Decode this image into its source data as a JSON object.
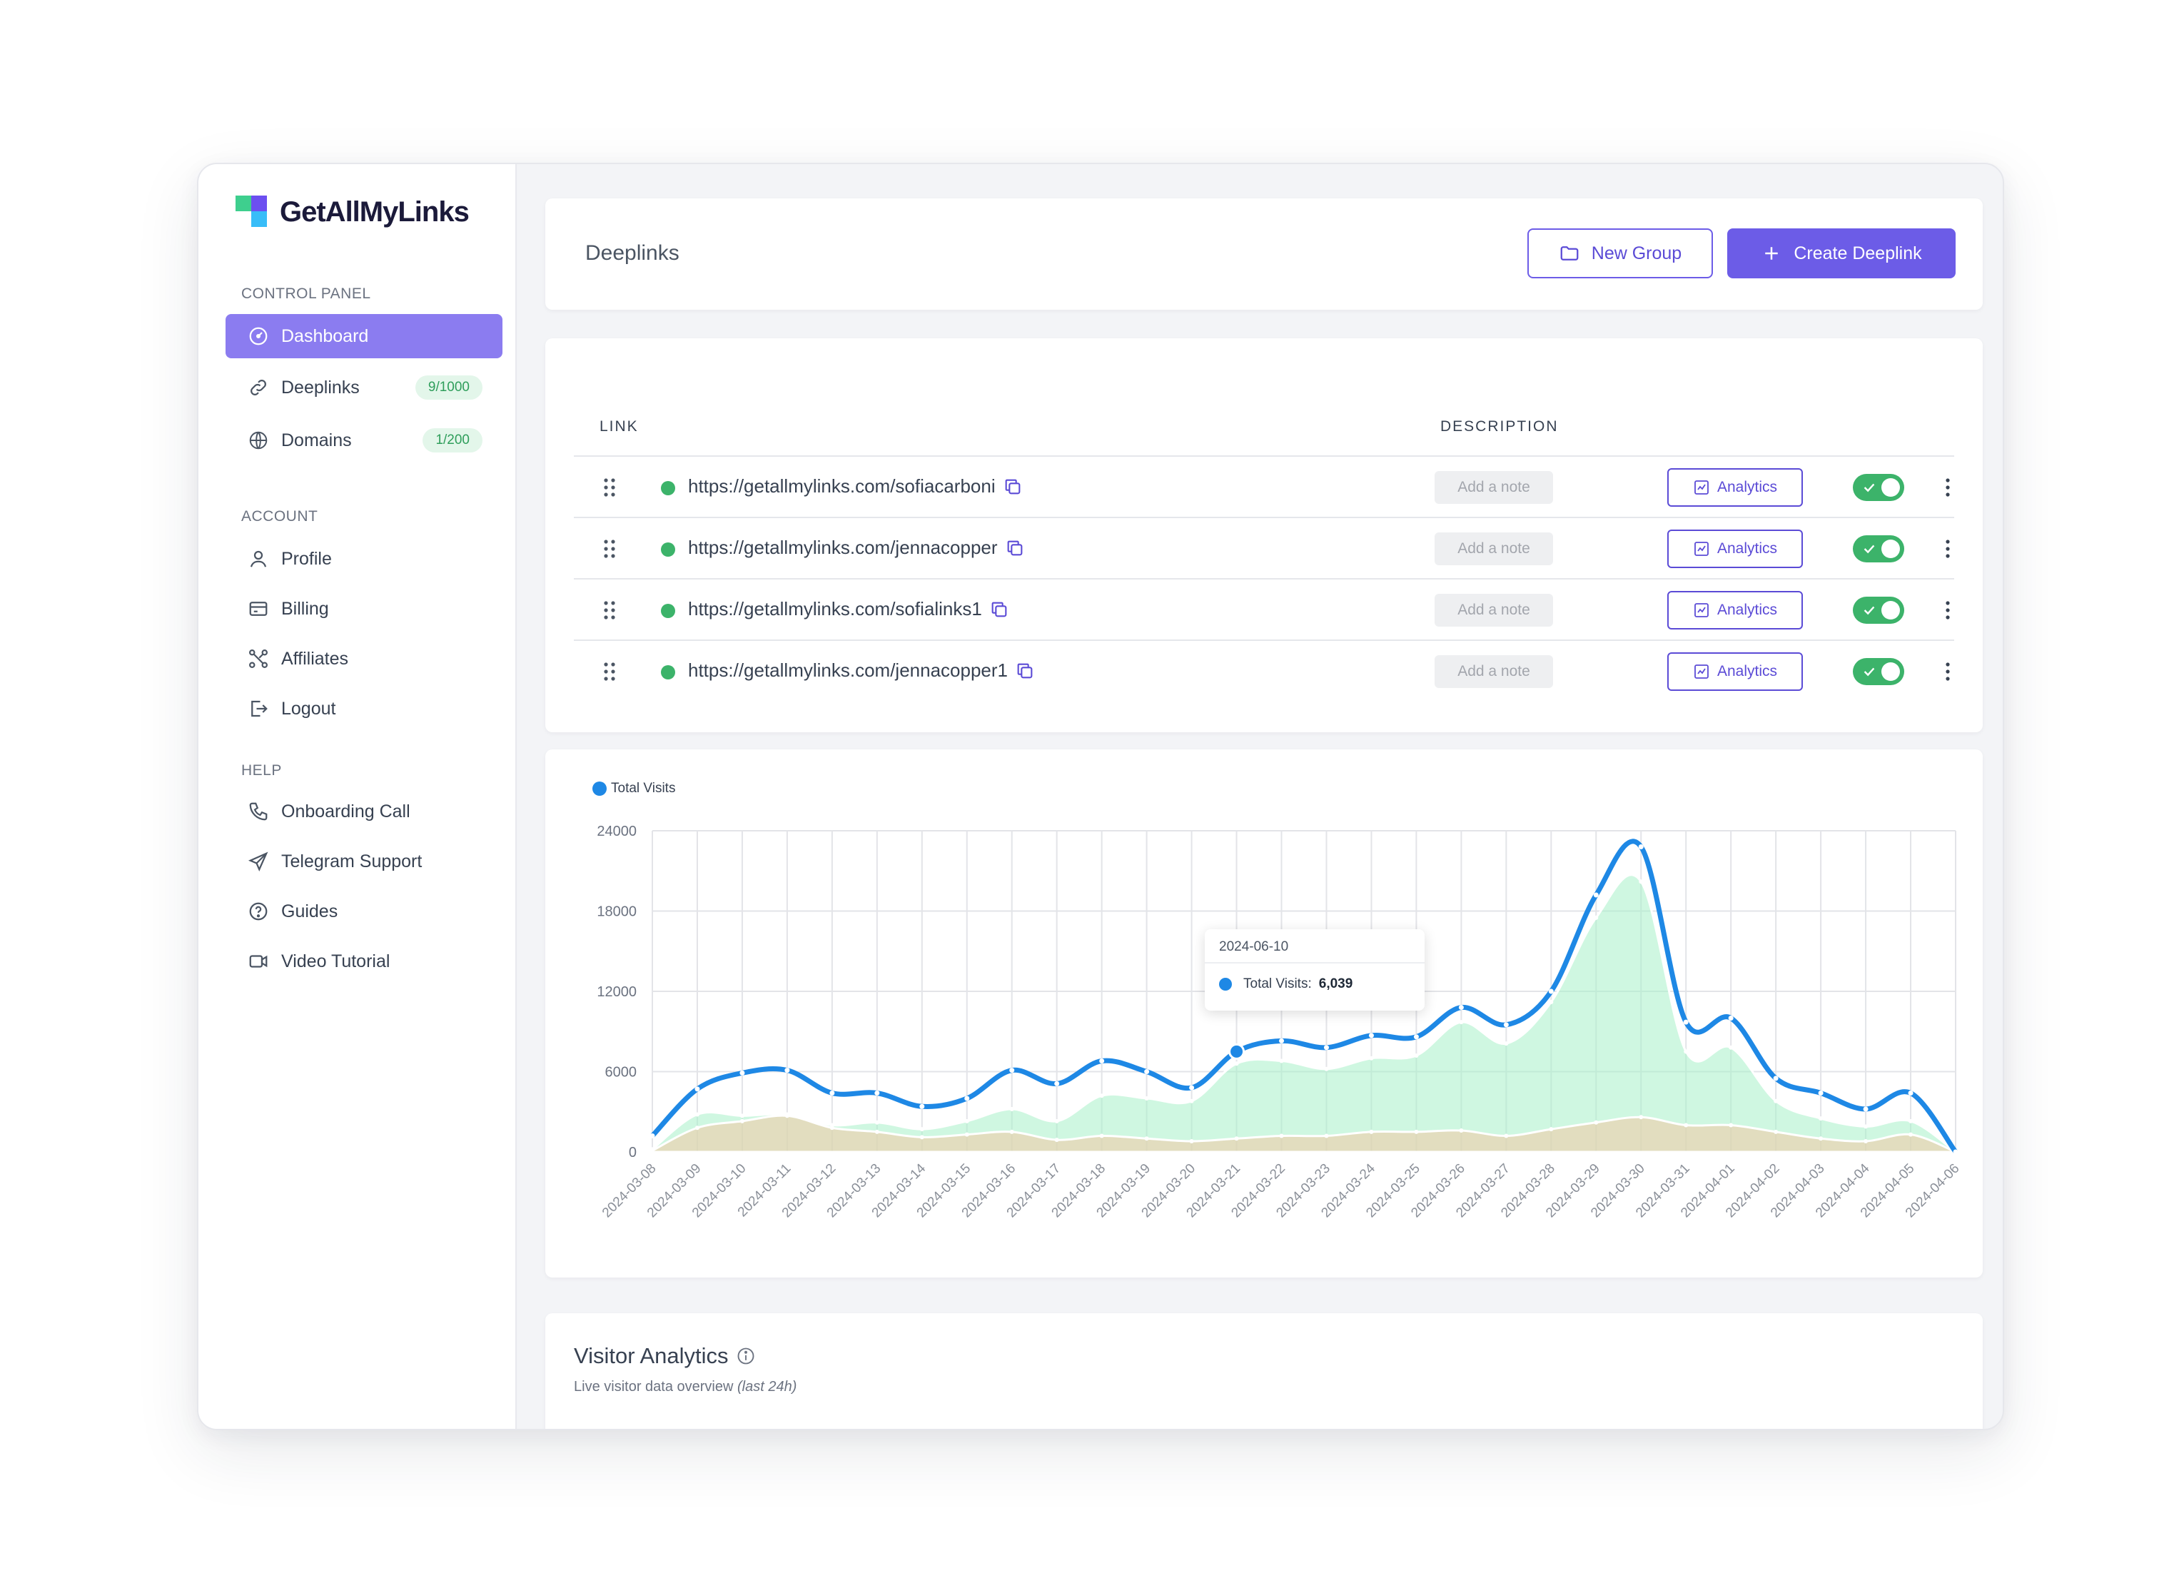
{
  "brand": {
    "name": "GetAllMyLinks"
  },
  "sidebar": {
    "sections": [
      {
        "label": "CONTROL PANEL"
      },
      {
        "label": "ACCOUNT"
      },
      {
        "label": "HELP"
      }
    ],
    "items": [
      {
        "label": "Dashboard",
        "icon": "dashboard-icon",
        "active": true
      },
      {
        "label": "Deeplinks",
        "icon": "link-icon",
        "badge": "9/1000"
      },
      {
        "label": "Domains",
        "icon": "www-icon",
        "badge": "1/200"
      },
      {
        "label": "Profile",
        "icon": "user-icon"
      },
      {
        "label": "Billing",
        "icon": "credit-card-icon"
      },
      {
        "label": "Affiliates",
        "icon": "affiliates-icon"
      },
      {
        "label": "Logout",
        "icon": "logout-icon"
      },
      {
        "label": "Onboarding Call",
        "icon": "phone-icon"
      },
      {
        "label": "Telegram Support",
        "icon": "send-icon"
      },
      {
        "label": "Guides",
        "icon": "help-circle-icon"
      },
      {
        "label": "Video Tutorial",
        "icon": "video-icon"
      }
    ]
  },
  "header": {
    "title": "Deeplinks",
    "new_group_label": "New Group",
    "create_label": "Create Deeplink"
  },
  "table": {
    "col_link": "LINK",
    "col_description": "DESCRIPTION",
    "rows": [
      {
        "url": "https://getallmylinks.com/sofiacarboni",
        "note_placeholder": "Add a note",
        "analytics_label": "Analytics",
        "enabled": true
      },
      {
        "url": "https://getallmylinks.com/jennacopper",
        "note_placeholder": "Add a note",
        "analytics_label": "Analytics",
        "enabled": true
      },
      {
        "url": "https://getallmylinks.com/sofialinks1",
        "note_placeholder": "Add a note",
        "analytics_label": "Analytics",
        "enabled": true
      },
      {
        "url": "https://getallmylinks.com/jennacopper1",
        "note_placeholder": "Add a note",
        "analytics_label": "Analytics",
        "enabled": true
      }
    ]
  },
  "tooltip": {
    "date": "2024-06-10",
    "label": "Total Visits:",
    "value": "6,039"
  },
  "chart_data": {
    "type": "line",
    "categories": [
      "2024-03-08",
      "2024-03-09",
      "2024-03-10",
      "2024-03-11",
      "2024-03-12",
      "2024-03-13",
      "2024-03-14",
      "2024-03-15",
      "2024-03-16",
      "2024-03-17",
      "2024-03-18",
      "2024-03-19",
      "2024-03-20",
      "2024-03-21",
      "2024-03-22",
      "2024-03-23",
      "2024-03-24",
      "2024-03-25",
      "2024-03-26",
      "2024-03-27",
      "2024-03-28",
      "2024-03-29",
      "2024-03-30",
      "2024-03-31",
      "2024-04-01",
      "2024-04-02",
      "2024-04-03",
      "2024-04-04",
      "2024-04-05",
      "2024-04-06"
    ],
    "series": [
      {
        "name": "Total Visits",
        "color": "#1e88e5",
        "values": [
          1200,
          4700,
          5900,
          6100,
          4400,
          4400,
          3400,
          4000,
          6100,
          5100,
          6800,
          6000,
          4800,
          7500,
          8300,
          7800,
          8700,
          8600,
          10800,
          9500,
          12000,
          19200,
          22800,
          9700,
          10000,
          5500,
          4400,
          3200,
          4400,
          0
        ]
      },
      {
        "color": "#a7f0c9",
        "values": [
          200,
          2800,
          2700,
          2800,
          2000,
          2200,
          1700,
          2300,
          3200,
          2300,
          4200,
          4000,
          3800,
          6600,
          6800,
          6200,
          7000,
          7200,
          9700,
          8100,
          11200,
          17500,
          20200,
          7500,
          7800,
          3800,
          2500,
          1900,
          2300,
          0
        ]
      },
      {
        "color": "#f3c9a4",
        "values": [
          100,
          1800,
          2300,
          2700,
          1800,
          1500,
          1100,
          1300,
          1500,
          900,
          1200,
          1000,
          800,
          1000,
          1200,
          1200,
          1500,
          1500,
          1600,
          1200,
          1700,
          2200,
          2600,
          2000,
          2000,
          1500,
          1000,
          800,
          1300,
          0
        ]
      }
    ],
    "ylim": [
      0,
      24000
    ],
    "yticks": [
      0,
      6000,
      12000,
      18000,
      24000
    ],
    "highlight_index": 13,
    "grid": true,
    "legend": "top-left"
  },
  "visitor": {
    "title": "Visitor Analytics",
    "subtitle": "Live visitor data overview",
    "subtitle_em": "(last 24h)"
  }
}
